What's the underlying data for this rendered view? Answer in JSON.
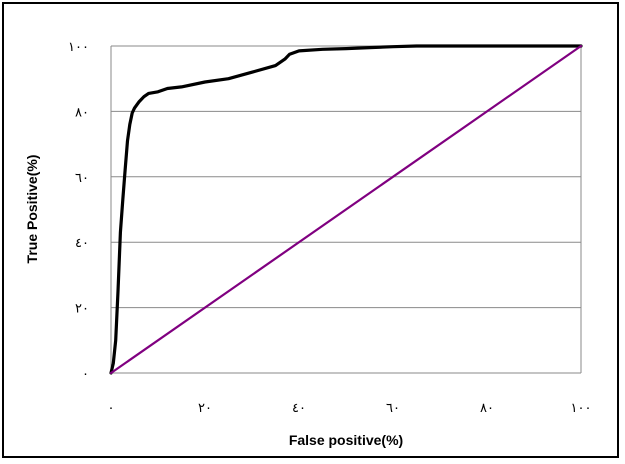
{
  "chart_data": {
    "type": "line",
    "title": "",
    "xlabel": "False positive(%)",
    "ylabel": "True Positive(%)",
    "xlim": [
      0,
      100
    ],
    "ylim": [
      0,
      100
    ],
    "x_ticks": [
      0,
      20,
      40,
      60,
      80,
      100
    ],
    "y_ticks": [
      0,
      20,
      40,
      60,
      80,
      100
    ],
    "x_tick_labels": [
      "٠",
      "٢٠",
      "٤٠",
      "٦٠",
      "٨٠",
      "١٠٠"
    ],
    "y_tick_labels": [
      "٠",
      "٢٠",
      "٤٠",
      "٦٠",
      "٨٠",
      "١٠٠"
    ],
    "grid": "horizontal",
    "legend": "none",
    "series": [
      {
        "color": "#000000",
        "x": [
          0,
          0.5,
          1,
          1.5,
          2,
          2.5,
          3,
          3.5,
          4,
          4.5,
          5,
          6,
          7,
          8,
          10,
          12,
          15,
          20,
          25,
          30,
          35,
          37,
          38,
          40,
          45,
          50,
          55,
          60,
          65,
          100
        ],
        "y": [
          0,
          3,
          10,
          25,
          43,
          53,
          62,
          71,
          76,
          79.5,
          81,
          83,
          84.5,
          85.5,
          86,
          87,
          87.5,
          89,
          90,
          92,
          94,
          96,
          97.5,
          98.5,
          99,
          99.2,
          99.5,
          99.8,
          100,
          100
        ]
      },
      {
        "color": "#800080",
        "x": [
          0,
          100
        ],
        "y": [
          0,
          100
        ]
      }
    ]
  }
}
